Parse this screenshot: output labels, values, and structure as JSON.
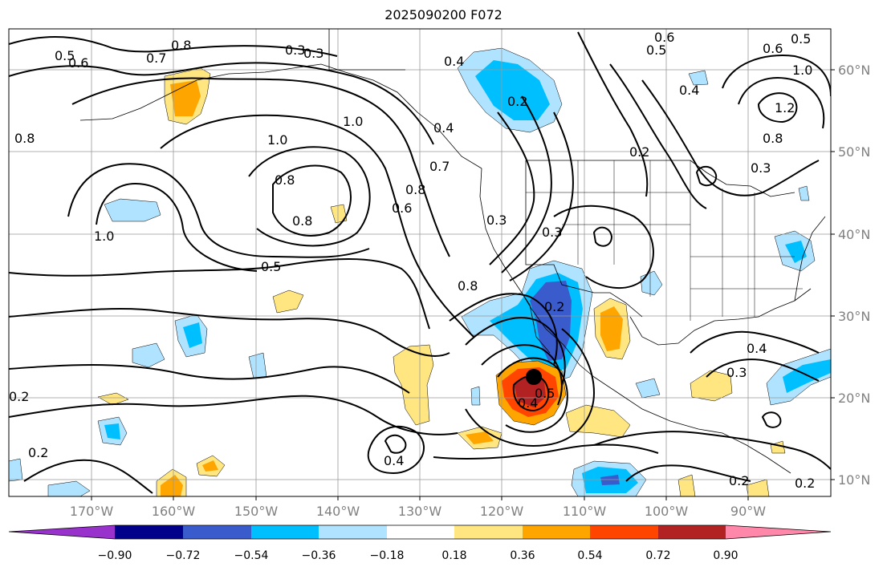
{
  "title": "2025090200 F072",
  "longitude_labels": [
    "170°W",
    "160°W",
    "150°W",
    "140°W",
    "130°W",
    "120°W",
    "110°W",
    "100°W",
    "90°W"
  ],
  "latitude_labels": [
    "60°N",
    "50°N",
    "40°N",
    "30°N",
    "20°N",
    "10°N"
  ],
  "colorbar": {
    "colors": [
      "#9932cc",
      "#00008b",
      "#3a5bcc",
      "#00bfff",
      "#afe3ff",
      "#ffffff",
      "#ffe680",
      "#ffa500",
      "#ff4500",
      "#b22222",
      "#ff88aa"
    ],
    "tick_labels": [
      "−0.90",
      "−0.72",
      "−0.54",
      "−0.36",
      "−0.18",
      "0.18",
      "0.36",
      "0.54",
      "0.72",
      "0.90"
    ]
  },
  "contour_labels": [
    "0.5",
    "0.6",
    "0.7",
    "0.8",
    "0.3",
    "0.3",
    "0.4",
    "0.6",
    "0.5",
    "0.5",
    "0.6",
    "1.0",
    "1.0",
    "0.8",
    "0.8",
    "1.0",
    "1.0",
    "0.5",
    "0.8",
    "0.8",
    "0.7",
    "0.6",
    "0.4",
    "0.8",
    "0.3",
    "0.3",
    "0.2",
    "0.2",
    "0.4",
    "0.8",
    "0.3",
    "1.2",
    "0.4",
    "0.2",
    "0.4",
    "0.3",
    "0.4",
    "0.5",
    "0.2",
    "0.2",
    "0.2",
    "0.2"
  ]
}
